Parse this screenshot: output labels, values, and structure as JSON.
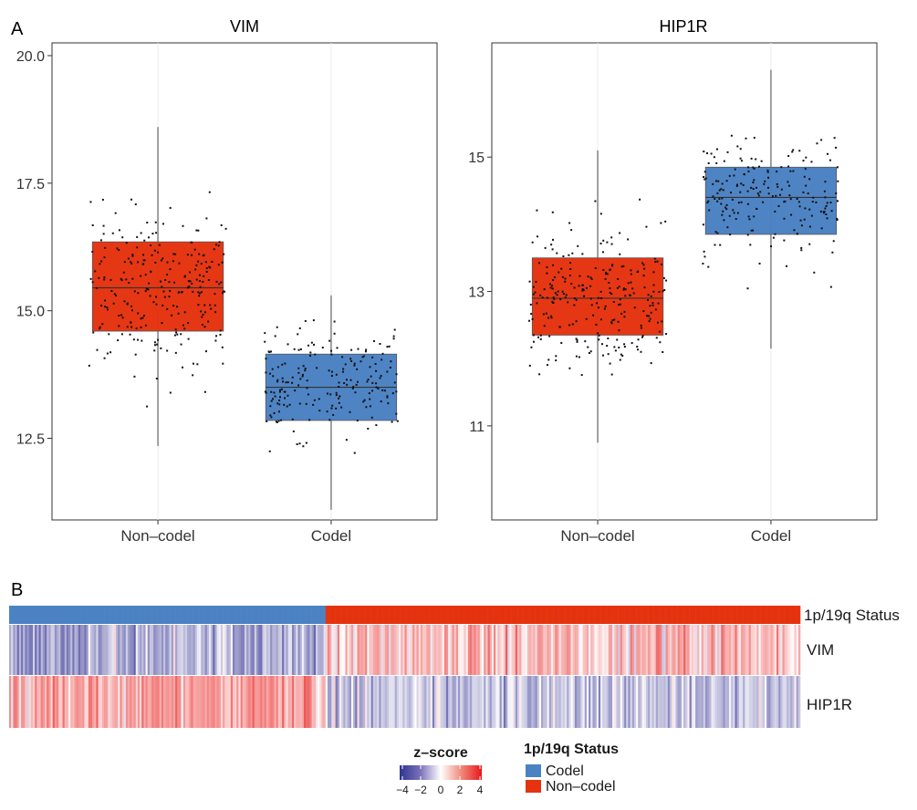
{
  "panel_labels": {
    "a": "A",
    "b": "B"
  },
  "colors": {
    "non_codel": "#e5330f",
    "codel": "#4b82c3",
    "neg": "#3a3fa0",
    "pos": "#e8261c",
    "mid": "#ffffff"
  },
  "chart_data": [
    {
      "type": "box",
      "title": "VIM",
      "categories": [
        "Non–codel",
        "Codel"
      ],
      "ylim": [
        10.9,
        20.25
      ],
      "yticks": [
        20.0,
        17.5,
        15.0,
        12.5
      ],
      "ytick_labels": [
        "20.0",
        "17.5",
        "15.0",
        "12.5"
      ],
      "boxes": [
        {
          "category": "Non–codel",
          "whisker_low": 12.35,
          "q1": 14.6,
          "median": 15.45,
          "q3": 16.35,
          "whisker_high": 18.6,
          "n_points": 260
        },
        {
          "category": "Codel",
          "whisker_low": 11.1,
          "q1": 12.85,
          "median": 13.5,
          "q3": 14.15,
          "whisker_high": 15.3,
          "n_points": 200
        }
      ]
    },
    {
      "type": "box",
      "title": "HIP1R",
      "categories": [
        "Non–codel",
        "Codel"
      ],
      "ylim": [
        9.6,
        16.7
      ],
      "yticks": [
        15,
        13,
        11
      ],
      "ytick_labels": [
        "15",
        "13",
        "11"
      ],
      "boxes": [
        {
          "category": "Non–codel",
          "whisker_low": 10.75,
          "q1": 12.35,
          "median": 12.9,
          "q3": 13.5,
          "whisker_high": 15.1,
          "n_points": 260
        },
        {
          "category": "Codel",
          "whisker_low": 12.15,
          "q1": 13.85,
          "median": 14.4,
          "q3": 14.85,
          "whisker_high": 16.3,
          "n_points": 200
        }
      ]
    },
    {
      "type": "heatmap",
      "rows": [
        "1p/19q Status",
        "VIM",
        "HIP1R"
      ],
      "n_codel": 160,
      "n_non_codel": 240,
      "legend": {
        "zscore_title": "z–score",
        "zscore_ticks": [
          "−4",
          "−2",
          "0",
          "2",
          "4"
        ],
        "status_title": "1p/19q Status",
        "status_items": [
          "Codel",
          "Non–codel"
        ]
      }
    }
  ]
}
